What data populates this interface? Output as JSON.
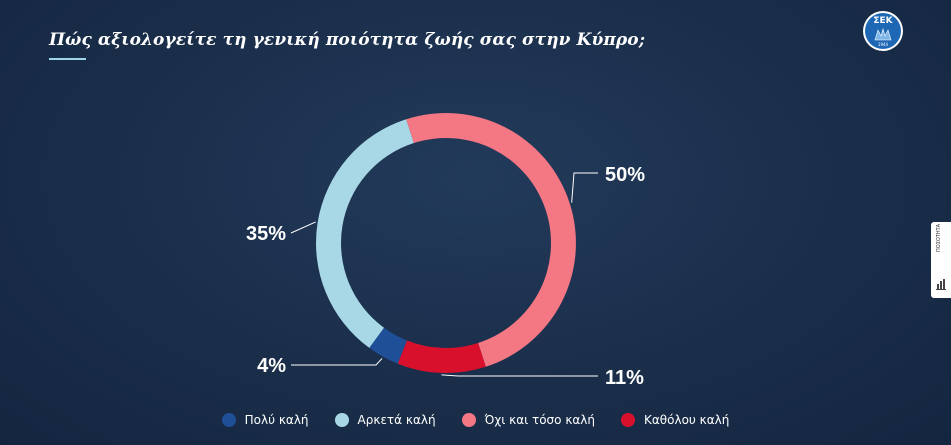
{
  "title": "Πώς αξιολογείτε τη γενική ποιότητα ζωής σας στην Κύπρο;",
  "logo": {
    "text": "ΣΕΚ",
    "year": "1944"
  },
  "side_tab": {
    "label": "ΠΟΣΟΤΗΤΑ"
  },
  "colors": {
    "background": "#1a2e4a",
    "accent_line": "#9fd6e6"
  },
  "chart_data": {
    "type": "pie",
    "donut": true,
    "title": "Πώς αξιολογείτε τη γενική ποιότητα ζωής σας στην Κύπρο;",
    "categories": [
      "Πολύ καλή",
      "Αρκετά καλή",
      "Όχι και τόσο καλή",
      "Καθόλου καλή"
    ],
    "values": [
      4,
      35,
      50,
      11
    ],
    "labels": [
      "4%",
      "35%",
      "50%",
      "11%"
    ],
    "colors": [
      "#1f4f96",
      "#a8d8e6",
      "#f47784",
      "#d8102c"
    ],
    "legend_position": "bottom"
  }
}
